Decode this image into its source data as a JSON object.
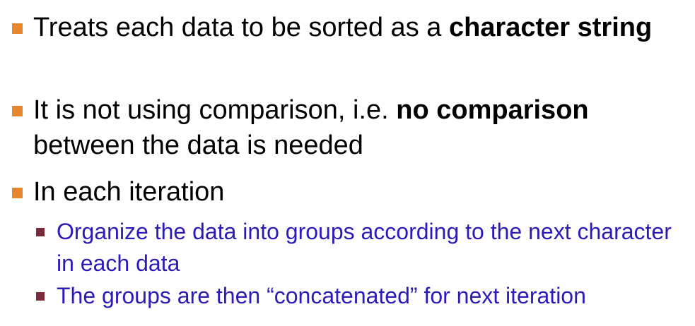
{
  "bullets": [
    {
      "pre": "Treats each data to be sorted as a ",
      "bold": "character string",
      "post": ""
    },
    {
      "pre": "It is not using comparison, i.e. ",
      "bold": "no comparison",
      "post": " between the data is needed"
    },
    {
      "pre": "In each iteration",
      "bold": "",
      "post": ""
    }
  ],
  "sub_bullets": [
    {
      "text": "Organize the data into groups according to the next character in each data"
    },
    {
      "text": "The groups are then “concatenated” for next iteration"
    }
  ],
  "colors": {
    "bullet_marker": "#e8862f",
    "sub_marker": "#7a2b3c",
    "sub_text": "#2b1bb8",
    "main_text": "#000000"
  }
}
